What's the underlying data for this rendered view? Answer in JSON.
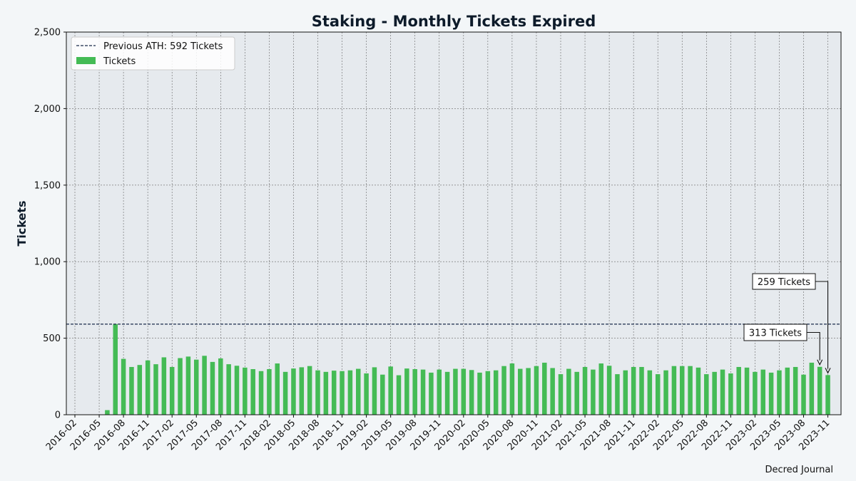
{
  "chart_data": {
    "type": "bar",
    "title": "Staking - Monthly Tickets Expired",
    "xlabel": "",
    "ylabel": "Tickets",
    "ylim": [
      0,
      2500
    ],
    "yticks": [
      0,
      500,
      1000,
      1500,
      2000,
      2500
    ],
    "ytick_labels": [
      "0",
      "500",
      "1,000",
      "1,500",
      "2,000",
      "2,500"
    ],
    "xtick_labels": [
      "2016-02",
      "2016-05",
      "2016-08",
      "2016-11",
      "2017-02",
      "2017-05",
      "2017-08",
      "2017-11",
      "2018-02",
      "2018-05",
      "2018-08",
      "2018-11",
      "2019-02",
      "2019-05",
      "2019-08",
      "2019-11",
      "2020-02",
      "2020-05",
      "2020-08",
      "2020-11",
      "2021-02",
      "2021-05",
      "2021-08",
      "2021-11",
      "2022-02",
      "2022-05",
      "2022-08",
      "2022-11",
      "2023-02",
      "2023-05",
      "2023-08",
      "2023-11"
    ],
    "categories": [
      "2016-02",
      "2016-03",
      "2016-04",
      "2016-05",
      "2016-06",
      "2016-07",
      "2016-08",
      "2016-09",
      "2016-10",
      "2016-11",
      "2016-12",
      "2017-01",
      "2017-02",
      "2017-03",
      "2017-04",
      "2017-05",
      "2017-06",
      "2017-07",
      "2017-08",
      "2017-09",
      "2017-10",
      "2017-11",
      "2017-12",
      "2018-01",
      "2018-02",
      "2018-03",
      "2018-04",
      "2018-05",
      "2018-06",
      "2018-07",
      "2018-08",
      "2018-09",
      "2018-10",
      "2018-11",
      "2018-12",
      "2019-01",
      "2019-02",
      "2019-03",
      "2019-04",
      "2019-05",
      "2019-06",
      "2019-07",
      "2019-08",
      "2019-09",
      "2019-10",
      "2019-11",
      "2019-12",
      "2020-01",
      "2020-02",
      "2020-03",
      "2020-04",
      "2020-05",
      "2020-06",
      "2020-07",
      "2020-08",
      "2020-09",
      "2020-10",
      "2020-11",
      "2020-12",
      "2021-01",
      "2021-02",
      "2021-03",
      "2021-04",
      "2021-05",
      "2021-06",
      "2021-07",
      "2021-08",
      "2021-09",
      "2021-10",
      "2021-11",
      "2021-12",
      "2022-01",
      "2022-02",
      "2022-03",
      "2022-04",
      "2022-05",
      "2022-06",
      "2022-07",
      "2022-08",
      "2022-09",
      "2022-10",
      "2022-11",
      "2022-12",
      "2023-01",
      "2023-02",
      "2023-03",
      "2023-04",
      "2023-05",
      "2023-06",
      "2023-07",
      "2023-08",
      "2023-09",
      "2023-10",
      "2023-11"
    ],
    "series": [
      {
        "name": "Tickets",
        "color": "#44bb55",
        "values": [
          0,
          0,
          0,
          0,
          30,
          592,
          365,
          312,
          325,
          355,
          330,
          375,
          312,
          370,
          380,
          360,
          385,
          345,
          368,
          330,
          320,
          308,
          298,
          285,
          298,
          335,
          280,
          302,
          310,
          318,
          290,
          280,
          288,
          285,
          290,
          300,
          270,
          310,
          262,
          315,
          258,
          302,
          298,
          295,
          275,
          295,
          280,
          300,
          300,
          292,
          275,
          285,
          290,
          318,
          335,
          300,
          305,
          318,
          340,
          305,
          265,
          300,
          280,
          312,
          295,
          335,
          320,
          265,
          290,
          312,
          312,
          290,
          265,
          290,
          318,
          318,
          318,
          308,
          265,
          280,
          295,
          270,
          312,
          308,
          280,
          295,
          275,
          290,
          308,
          312,
          262,
          340,
          313,
          259
        ]
      }
    ],
    "reference_line": {
      "value": 592,
      "label": "Previous ATH: 592 Tickets",
      "color": "#1a2a4a",
      "style": "dashed"
    },
    "annotations": [
      {
        "text": "313 Tickets",
        "category": "2023-10",
        "value": 313
      },
      {
        "text": "259 Tickets",
        "category": "2023-11",
        "value": 259
      }
    ],
    "grid": true,
    "legend_position": "top-left",
    "background_color": "#e6eaee",
    "source": "Decred Journal"
  }
}
